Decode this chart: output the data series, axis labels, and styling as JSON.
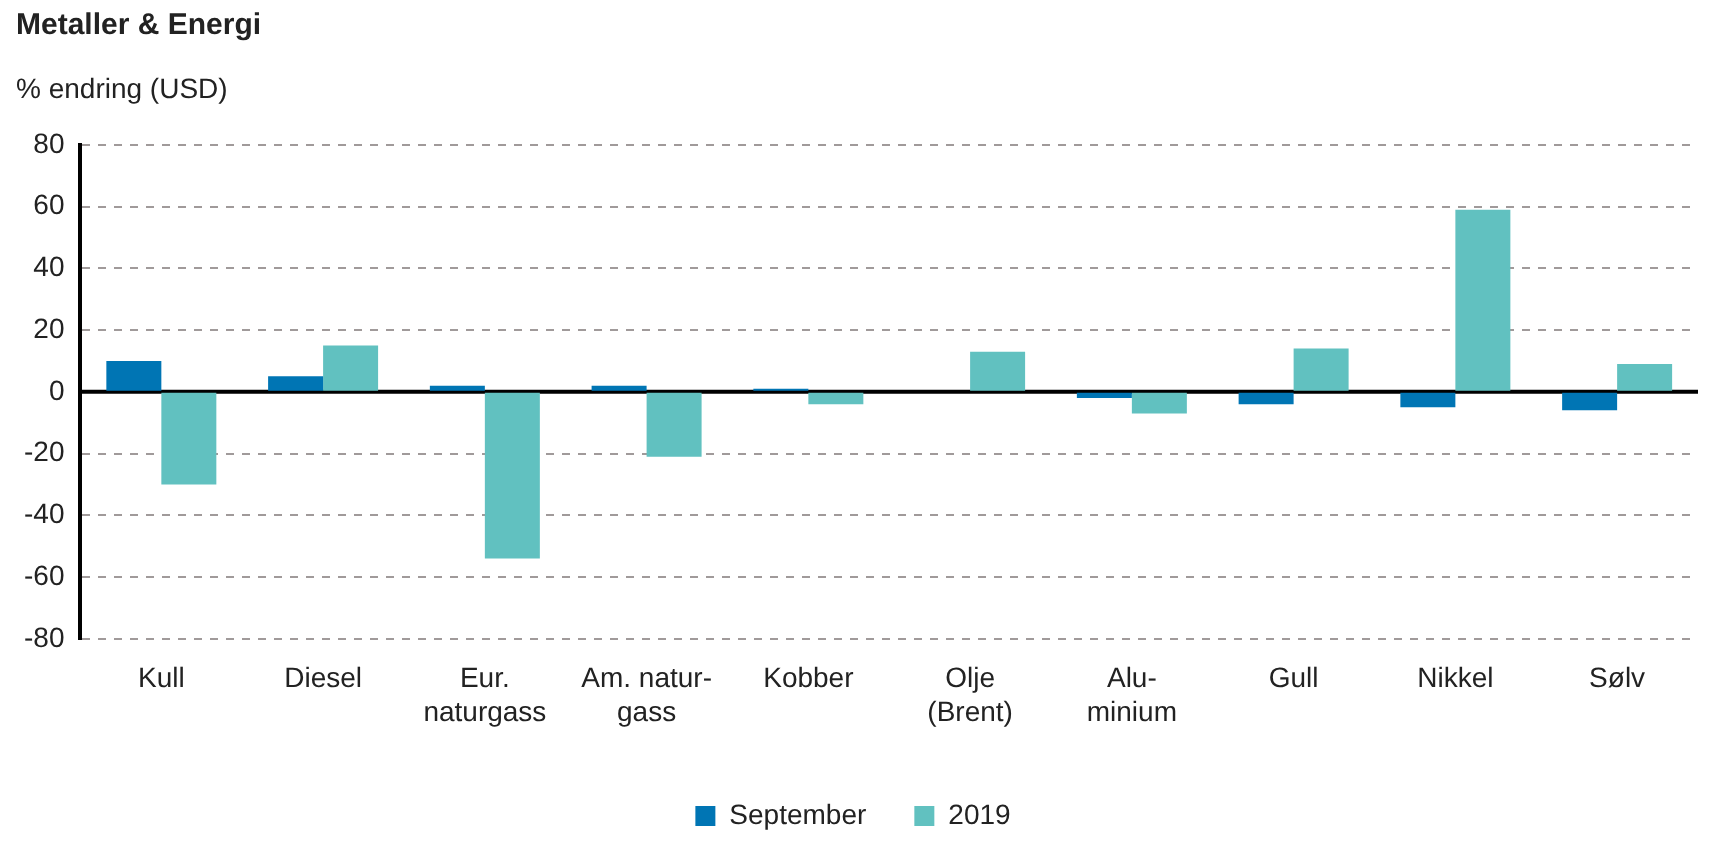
{
  "chart_data": {
    "type": "bar",
    "title": "Metaller & Energi",
    "ylabel": "% endring (USD)",
    "categories": [
      "Kull",
      "Diesel",
      "Eur.\nnaturgass",
      "Am. natur-\ngass",
      "Kobber",
      "Olje\n(Brent)",
      "Alu-\nminium",
      "Gull",
      "Nikkel",
      "Sølv"
    ],
    "series": [
      {
        "name": "September",
        "color": "#0075b4",
        "values": [
          10,
          5,
          2,
          2,
          1,
          0,
          -2,
          -4,
          -5,
          -6
        ]
      },
      {
        "name": "2019",
        "color": "#61c1c0",
        "values": [
          -30,
          15,
          -54,
          -21,
          -4,
          13,
          -7,
          14,
          59,
          9
        ]
      }
    ],
    "ylim": [
      -80,
      80
    ],
    "yticks": [
      -80,
      -60,
      -40,
      -20,
      0,
      20,
      40,
      60,
      80
    ],
    "grid": "y",
    "legend": "bottom"
  }
}
